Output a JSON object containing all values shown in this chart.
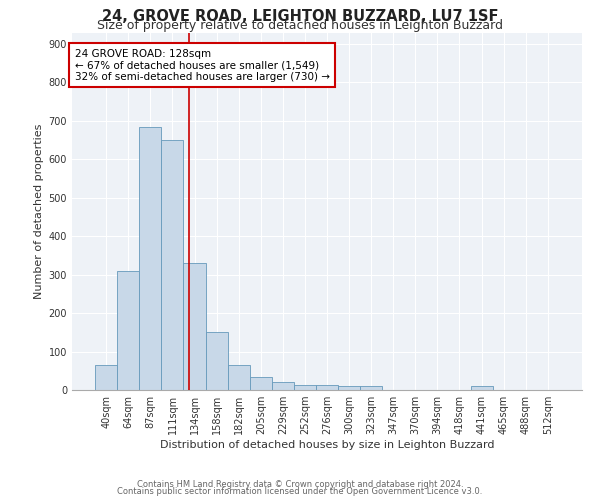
{
  "title1": "24, GROVE ROAD, LEIGHTON BUZZARD, LU7 1SF",
  "title2": "Size of property relative to detached houses in Leighton Buzzard",
  "xlabel": "Distribution of detached houses by size in Leighton Buzzard",
  "ylabel": "Number of detached properties",
  "bin_labels": [
    "40sqm",
    "64sqm",
    "87sqm",
    "111sqm",
    "134sqm",
    "158sqm",
    "182sqm",
    "205sqm",
    "229sqm",
    "252sqm",
    "276sqm",
    "300sqm",
    "323sqm",
    "347sqm",
    "370sqm",
    "394sqm",
    "418sqm",
    "441sqm",
    "465sqm",
    "488sqm",
    "512sqm"
  ],
  "bar_values": [
    65,
    310,
    685,
    650,
    330,
    150,
    65,
    35,
    20,
    12,
    12,
    10,
    10,
    0,
    0,
    0,
    0,
    10,
    0,
    0,
    0
  ],
  "bar_color": "#c8d8e8",
  "bar_edge_color": "#6699bb",
  "red_line_x": 3.77,
  "red_line_color": "#cc0000",
  "annotation_line1": "24 GROVE ROAD: 128sqm",
  "annotation_line2": "← 67% of detached houses are smaller (1,549)",
  "annotation_line3": "32% of semi-detached houses are larger (730) →",
  "annotation_box_color": "#ffffff",
  "annotation_box_edge_color": "#cc0000",
  "ylim": [
    0,
    930
  ],
  "background_color": "#eef2f7",
  "footer_text1": "Contains HM Land Registry data © Crown copyright and database right 2024.",
  "footer_text2": "Contains public sector information licensed under the Open Government Licence v3.0.",
  "title1_fontsize": 10.5,
  "title2_fontsize": 9,
  "axis_label_fontsize": 8,
  "tick_fontsize": 7
}
